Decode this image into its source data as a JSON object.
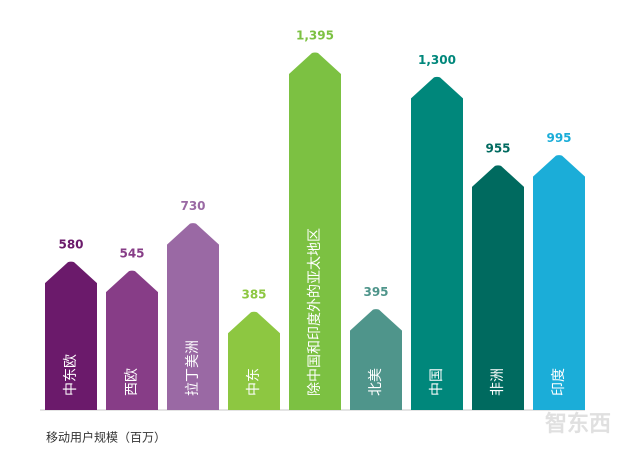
{
  "chart_data": {
    "type": "bar",
    "x_label": "移动用户规模（百万）",
    "categories": [
      "中东欧",
      "西欧",
      "拉丁美洲",
      "中东",
      "除中国和印度外的亚太地区",
      "北美",
      "中国",
      "非洲",
      "印度"
    ],
    "values": [
      580,
      545,
      730,
      385,
      1395,
      395,
      1300,
      955,
      995
    ],
    "value_labels": [
      "580",
      "545",
      "730",
      "385",
      "1,395",
      "395",
      "1,300",
      "955",
      "995"
    ],
    "colors": [
      "#6b1a6b",
      "#873d87",
      "#9a69a4",
      "#8dc741",
      "#7cc142",
      "#4f958b",
      "#00877b",
      "#006a5f",
      "#1badd8"
    ],
    "watermark": "智东西"
  }
}
